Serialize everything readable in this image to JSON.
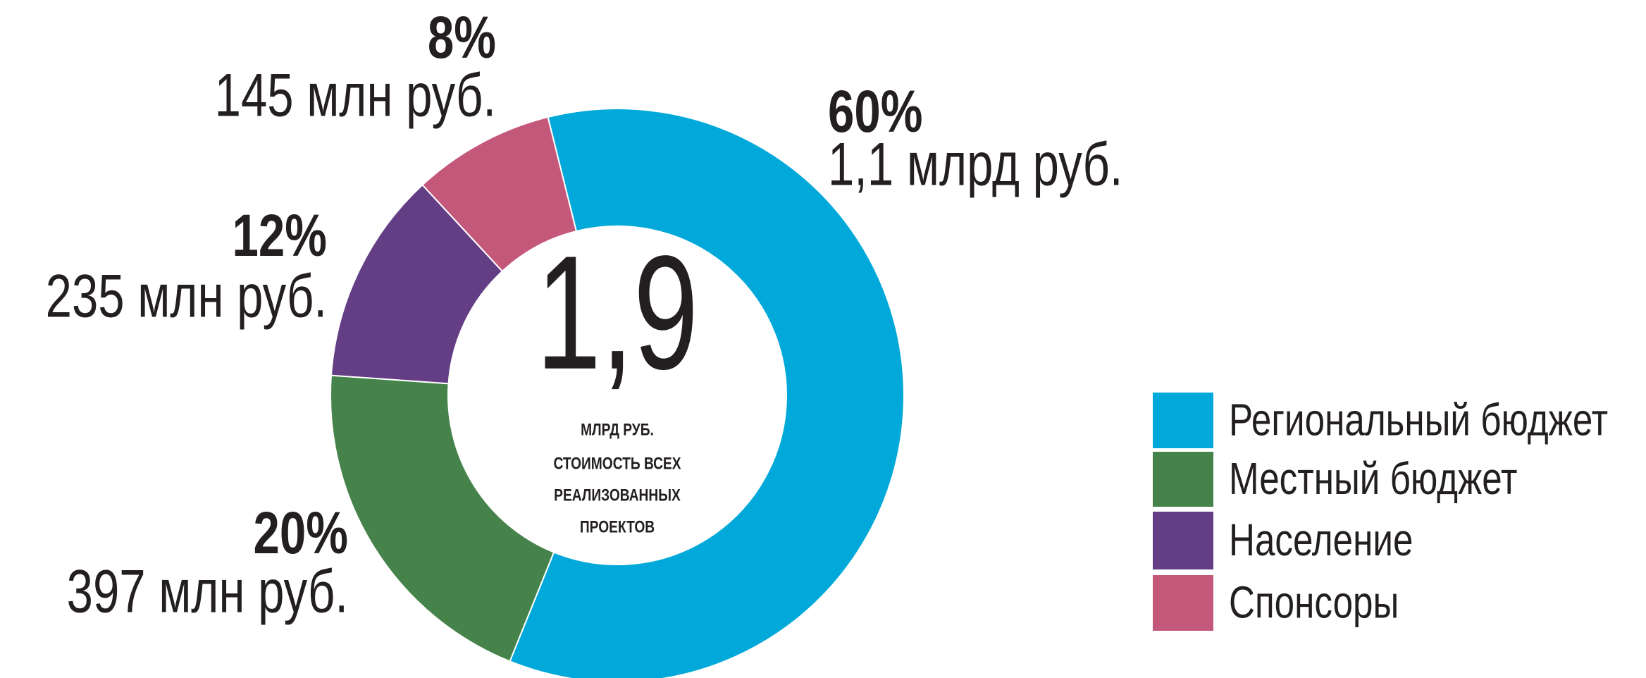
{
  "chart_data": {
    "type": "donut",
    "categories": [
      "Региональный бюджет",
      "Местный бюджет",
      "Население",
      "Спонсоры"
    ],
    "values": [
      60,
      20,
      12,
      8
    ],
    "value_labels": [
      "60%",
      "20%",
      "12%",
      "8%"
    ],
    "amounts": [
      "1,1 млрд руб.",
      "397 млн руб.",
      "235 млн руб.",
      "145 млн руб."
    ],
    "colors": [
      "#00a9d9",
      "#46834b",
      "#633e85",
      "#c4587b"
    ],
    "center_value": "1,9",
    "center_unit": "МЛРД РУБ.",
    "center_caption": [
      "СТОИМОСТЬ ВСЕХ",
      "РЕАЛИЗОВАННЫХ",
      "ПРОЕКТОВ"
    ],
    "legend": "right"
  }
}
